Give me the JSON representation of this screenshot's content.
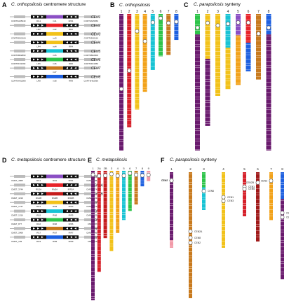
{
  "panels": {
    "A": {
      "letter": "A",
      "species": "C. orthopsilosis",
      "suffix": " centromere structure"
    },
    "B": {
      "letter": "B",
      "species": "C. orthopsilosis",
      "suffix": ""
    },
    "C": {
      "letter": "C",
      "species": "C. parapsilosis",
      "suffix": " synteny"
    },
    "D": {
      "letter": "D",
      "species": "C. metapsilosis",
      "suffix": " centromere structure"
    },
    "E": {
      "letter": "E",
      "species": "C. metapsilosis",
      "suffix": ""
    },
    "F": {
      "letter": "F",
      "species": "C. parapsilosis",
      "suffix": " synteny"
    }
  },
  "orthoCentromeres": [
    {
      "name": "CEN1",
      "color": "#8b4fc4",
      "flankL": "CORT0A05040",
      "flankR": "CORT0A05050",
      "inv": "ird1",
      "irL": "IRL1",
      "irR": "IRR1"
    },
    {
      "name": "CEN2",
      "color": "#e8242a",
      "flankL": "",
      "flankR": "",
      "inv": "ird2",
      "irL": "LR2",
      "irR": "RR2"
    },
    {
      "name": "CEN3",
      "color": "#f2c21a",
      "flankL": "CORT0D02100",
      "flankR": "CORT0D02110",
      "inv": "ird3",
      "irL": "",
      "irR": ""
    },
    {
      "name": "CEN4",
      "color": "#f2c21a",
      "flankL": "",
      "flankR": "",
      "inv": "ird4",
      "irL": "LR4",
      "irR": "RR4"
    },
    {
      "name": "CEN5",
      "color": "#18c3d4",
      "flankL": "CORT0B02890",
      "flankR": "CORT0B02900",
      "inv": "ird5",
      "irL": "",
      "irR": ""
    },
    {
      "name": "CEN6",
      "color": "#2ec44a",
      "flankL": "CORT0F01690",
      "flankR": "CORT0F01650",
      "inv": "ird6",
      "irL": "LR6",
      "irR": "RR6"
    },
    {
      "name": "CEN7",
      "color": "#c87a1e",
      "flankL": "",
      "flankR": "",
      "inv": "ird7",
      "irL": "",
      "irR": ""
    },
    {
      "name": "CEN8",
      "color": "#1e60e0",
      "flankL": "CORT0H02080",
      "flankR": "CORT0H02090",
      "inv": "ird8",
      "irL": "LR8",
      "irR": "RR8"
    }
  ],
  "metaCentromeres": [
    {
      "name": "CEN1",
      "color": "#8b4fc4",
      "flankL": "CMET_4865",
      "flankR": "CMET_4867",
      "inv": "IRd1",
      "irL": "IRL1",
      "irR": "IRR1"
    },
    {
      "name": "CEN2A",
      "color": "#e8242a",
      "flankL": "CMET_3744",
      "flankR": "CMET_3745",
      "inv": "IRd2A",
      "irL": "IRL2A",
      "irR": "IRR2A"
    },
    {
      "name": "CEN2B",
      "color": "#c61c1c",
      "flankL": "CMET_4219",
      "flankR": "CMET_4220",
      "inv": "IRd2B",
      "irL": "IRL2B",
      "irR": "IRR2B"
    },
    {
      "name": "CEN3",
      "color": "#f2c21a",
      "flankL": "CMET_1747",
      "flankR": "CMET_1748",
      "inv": "IRd3",
      "irL": "IRL3",
      "irR": "IRR3"
    },
    {
      "name": "CEN5",
      "color": "#18c3d4",
      "flankL": "CMET_1316",
      "flankR": "CMET_1320",
      "inv": "IRd5",
      "irL": "IRL5",
      "irR": "IRR5"
    },
    {
      "name": "CEN6",
      "color": "#2ec44a",
      "flankL": "CMET_877",
      "flankR": "CMET_878",
      "inv": "IRd6",
      "irL": "IRL6",
      "irR": "IRR6"
    },
    {
      "name": "CEN7",
      "color": "#c87a1e",
      "flankL": "CMET_3968",
      "flankR": "CMET_3969",
      "inv": "IRd7",
      "irL": "IRL7",
      "irR": "IRR7"
    },
    {
      "name": "CEN9",
      "color": "#1e60e0",
      "flankL": "CMET_169",
      "flankR": "CMET_160",
      "inv": "IRd9",
      "irL": "IRL9",
      "irR": "IRR9"
    }
  ],
  "panelB": {
    "labels": [
      "1",
      "2",
      "3",
      "4",
      "5",
      "6",
      "7",
      "8"
    ],
    "chromosomes": [
      {
        "num": "1",
        "color": "#6a1b6e",
        "lenFrac": 1.0,
        "cen": 0.55
      },
      {
        "num": "2",
        "color": "#d6202a",
        "lenFrac": 0.83,
        "cen": 0.5
      },
      {
        "num": "3",
        "color": "#f2c21a",
        "lenFrac": 0.7,
        "cen": 0.18
      },
      {
        "num": "4",
        "color": "#f2a21a",
        "lenFrac": 0.57,
        "cen": 0.35
      },
      {
        "num": "5",
        "color": "#18c3d4",
        "lenFrac": 0.41,
        "cen": 0.15
      },
      {
        "num": "6",
        "color": "#2ec44a",
        "lenFrac": 0.31,
        "cen": 0.1
      },
      {
        "num": "7",
        "color": "#c87a1e",
        "lenFrac": 0.3,
        "cen": 0.22
      },
      {
        "num": "8",
        "color": "#1e60e0",
        "lenFrac": 0.19,
        "cen": 0.3
      }
    ]
  },
  "panelC": {
    "labels": [
      "1",
      "2",
      "3",
      "4",
      "5",
      "6",
      "7",
      "8"
    ],
    "chromosomes": [
      {
        "num": "1",
        "segments": [
          {
            "c": "#2ec44a",
            "f": 0.15
          },
          {
            "c": "#6a1b6e",
            "f": 0.85
          }
        ],
        "cen": 0.1
      },
      {
        "num": "2",
        "segments": [
          {
            "c": "#f2c21a",
            "f": 0.4
          },
          {
            "c": "#6a1b6e",
            "f": 0.6
          }
        ],
        "cen": 0.08
      },
      {
        "num": "3",
        "segments": [
          {
            "c": "#f2c21a",
            "f": 1.0
          }
        ],
        "cen": 0.14
      },
      {
        "num": "4",
        "segments": [
          {
            "c": "#18c3d4",
            "f": 0.45
          },
          {
            "c": "#f2c21a",
            "f": 0.55
          }
        ],
        "cen": 0.13
      },
      {
        "num": "5",
        "segments": [
          {
            "c": "#8b4fc4",
            "f": 0.3
          },
          {
            "c": "#f2a21a",
            "f": 0.7
          }
        ],
        "cen": 0.12
      },
      {
        "num": "6",
        "segments": [
          {
            "c": "#e8242a",
            "f": 0.5
          },
          {
            "c": "#1e60e0",
            "f": 0.5
          }
        ],
        "cen": 0.15
      },
      {
        "num": "7",
        "segments": [
          {
            "c": "#c87a1e",
            "f": 1.0
          }
        ],
        "cen": 0.3
      },
      {
        "num": "8",
        "segments": [
          {
            "c": "#1e60e0",
            "f": 0.15
          },
          {
            "c": "#6a1b6e",
            "f": 0.85
          }
        ],
        "cen": 0.1
      }
    ]
  },
  "panelE": {
    "labels": [
      "1",
      "2A",
      "2B",
      "3",
      "4",
      "5",
      "6",
      "7",
      "8",
      "9"
    ],
    "chromosomes": [
      {
        "num": "1",
        "color": "#6a1b6e",
        "lenFrac": 1.0,
        "cen": 0.03
      },
      {
        "num": "2A",
        "color": "#d6202a",
        "lenFrac": 0.78,
        "cen": 0.05
      },
      {
        "num": "2B",
        "color": "#c61c1c",
        "lenFrac": 0.52,
        "cen": 0.07
      },
      {
        "num": "3",
        "color": "#f2c21a",
        "lenFrac": 0.62,
        "cen": 0.04
      },
      {
        "num": "4",
        "color": "#f2a21a",
        "lenFrac": 0.48,
        "cen": 0.08
      },
      {
        "num": "5",
        "color": "#18c3d4",
        "lenFrac": 0.38,
        "cen": 0.1
      },
      {
        "num": "6",
        "color": "#2ec44a",
        "lenFrac": 0.31,
        "cen": 0.06
      },
      {
        "num": "7",
        "color": "#c87a1e",
        "lenFrac": 0.26,
        "cen": 0.12
      },
      {
        "num": "8",
        "color": "#1e60e0",
        "lenFrac": 0.12,
        "cen": 0.3
      },
      {
        "num": "9",
        "color": "#f29aa8",
        "lenFrac": 0.08,
        "cen": 0.4
      }
    ]
  },
  "panelF": {
    "labels": [
      "1",
      "2",
      "3",
      "4",
      "5",
      "6",
      "7",
      "8"
    ],
    "chromosomes": [
      {
        "num": "1",
        "segments": [
          {
            "c": "#6a1b6e",
            "f": 0.9
          },
          {
            "c": "#f29aa8",
            "f": 0.1
          }
        ],
        "cens": [
          {
            "p": 0.11,
            "label": "CEN7",
            "side": "left"
          },
          {
            "p": 0.11,
            "label": "CEN4",
            "side": "left2"
          }
        ]
      },
      {
        "num": "2",
        "segments": [
          {
            "c": "#c87a1e",
            "f": 1.0
          }
        ],
        "cens": [
          {
            "p": 0.47,
            "label": "CEN2A",
            "side": "right"
          },
          {
            "p": 0.52,
            "label": "CEN8",
            "side": "right"
          },
          {
            "p": 0.56,
            "label": "CEN2",
            "side": "right"
          }
        ]
      },
      {
        "num": "3",
        "segments": [
          {
            "c": "#2ec44a",
            "f": 0.4
          },
          {
            "c": "#18c3d4",
            "f": 0.6
          }
        ],
        "cens": [
          {
            "p": 0.5,
            "label": "CEN5",
            "side": "right"
          }
        ]
      },
      {
        "num": "4",
        "segments": [
          {
            "c": "#f2c21a",
            "f": 1.0
          }
        ],
        "cens": [
          {
            "p": 0.33,
            "label": "CEN1",
            "side": "right"
          },
          {
            "p": 0.38,
            "label": "CEN3",
            "side": "right"
          }
        ]
      },
      {
        "num": "5",
        "segments": [
          {
            "c": "#d6202a",
            "f": 1.0
          }
        ],
        "cens": [
          {
            "p": 0.33,
            "label": "CEN1",
            "side": "right"
          },
          {
            "p": 0.38,
            "label": "CEN5",
            "side": "right"
          }
        ]
      },
      {
        "num": "6",
        "segments": [
          {
            "c": "#a01a1a",
            "f": 1.0
          }
        ],
        "cens": [
          {
            "p": 0.15,
            "label": "CEN2B",
            "side": "left"
          }
        ]
      },
      {
        "num": "7",
        "segments": [
          {
            "c": "#f2a21a",
            "f": 1.0
          }
        ],
        "cens": [
          {
            "p": 0.18,
            "label": "CEN3",
            "side": "left"
          }
        ]
      },
      {
        "num": "8",
        "segments": [
          {
            "c": "#1e60e0",
            "f": 0.25
          },
          {
            "c": "#6a1b6e",
            "f": 0.75
          }
        ],
        "cens": [
          {
            "p": 0.38,
            "label": "CEN6",
            "side": "right"
          },
          {
            "p": 0.42,
            "label": "CEN8",
            "side": "right"
          }
        ]
      }
    ]
  }
}
